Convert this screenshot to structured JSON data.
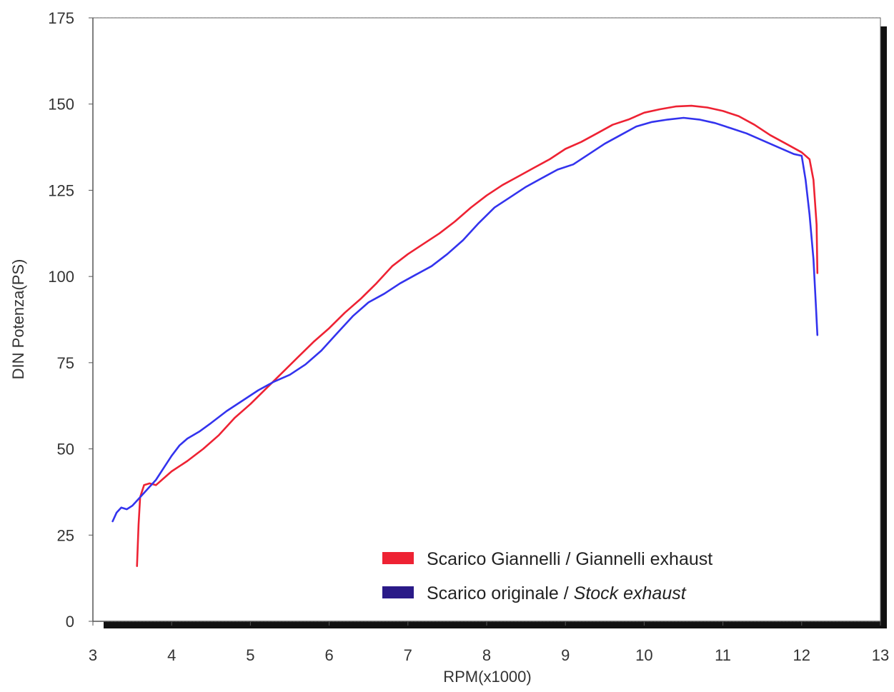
{
  "chart_data": {
    "type": "line",
    "title": "",
    "xlabel": "RPM(x1000)",
    "ylabel": "DIN Potenza(PS)",
    "xlim": [
      3,
      13
    ],
    "ylim": [
      0,
      175
    ],
    "x_ticks": [
      3,
      4,
      5,
      6,
      7,
      8,
      9,
      10,
      11,
      12,
      13
    ],
    "y_ticks": [
      0,
      25,
      50,
      75,
      100,
      125,
      150,
      175
    ],
    "grid": true,
    "legend_position": "bottom-right",
    "series": [
      {
        "name": "Scarico Giannelli / Giannelli exhaust",
        "name_parts": [
          "Scarico Giannelli / Giannelli exhaust",
          ""
        ],
        "color": "#ee2233",
        "points": [
          [
            3.56,
            16
          ],
          [
            3.58,
            28
          ],
          [
            3.6,
            36
          ],
          [
            3.65,
            39.5
          ],
          [
            3.72,
            40
          ],
          [
            3.8,
            39.5
          ],
          [
            3.9,
            41.5
          ],
          [
            4.0,
            43.5
          ],
          [
            4.2,
            46.5
          ],
          [
            4.4,
            50
          ],
          [
            4.6,
            54
          ],
          [
            4.8,
            59
          ],
          [
            5.0,
            63
          ],
          [
            5.2,
            67.5
          ],
          [
            5.4,
            72
          ],
          [
            5.6,
            76.5
          ],
          [
            5.8,
            81
          ],
          [
            6.0,
            85
          ],
          [
            6.2,
            89.5
          ],
          [
            6.4,
            93.5
          ],
          [
            6.6,
            98
          ],
          [
            6.8,
            103
          ],
          [
            7.0,
            106.5
          ],
          [
            7.2,
            109.5
          ],
          [
            7.4,
            112.5
          ],
          [
            7.6,
            116
          ],
          [
            7.8,
            120
          ],
          [
            8.0,
            123.5
          ],
          [
            8.2,
            126.5
          ],
          [
            8.4,
            129
          ],
          [
            8.6,
            131.5
          ],
          [
            8.8,
            134
          ],
          [
            9.0,
            137
          ],
          [
            9.2,
            139
          ],
          [
            9.4,
            141.5
          ],
          [
            9.6,
            144
          ],
          [
            9.8,
            145.5
          ],
          [
            10.0,
            147.5
          ],
          [
            10.2,
            148.5
          ],
          [
            10.4,
            149.3
          ],
          [
            10.6,
            149.5
          ],
          [
            10.8,
            149
          ],
          [
            11.0,
            148
          ],
          [
            11.2,
            146.5
          ],
          [
            11.4,
            144
          ],
          [
            11.6,
            141
          ],
          [
            11.8,
            138.5
          ],
          [
            12.0,
            136
          ],
          [
            12.1,
            134
          ],
          [
            12.15,
            128
          ],
          [
            12.19,
            115
          ],
          [
            12.2,
            101
          ]
        ]
      },
      {
        "name": "Scarico originale / Stock exhaust",
        "name_parts": [
          "Scarico originale / ",
          "Stock exhaust"
        ],
        "color": "#3333ee",
        "points": [
          [
            3.25,
            29
          ],
          [
            3.3,
            31.5
          ],
          [
            3.36,
            33
          ],
          [
            3.43,
            32.5
          ],
          [
            3.5,
            33.5
          ],
          [
            3.6,
            36
          ],
          [
            3.7,
            38.5
          ],
          [
            3.8,
            41
          ],
          [
            3.9,
            44.5
          ],
          [
            4.0,
            48
          ],
          [
            4.1,
            51
          ],
          [
            4.2,
            53
          ],
          [
            4.35,
            55
          ],
          [
            4.5,
            57.5
          ],
          [
            4.7,
            61
          ],
          [
            4.9,
            64
          ],
          [
            5.1,
            67
          ],
          [
            5.3,
            69.5
          ],
          [
            5.5,
            71.5
          ],
          [
            5.7,
            74.5
          ],
          [
            5.9,
            78.5
          ],
          [
            6.1,
            83.5
          ],
          [
            6.3,
            88.5
          ],
          [
            6.5,
            92.5
          ],
          [
            6.7,
            95
          ],
          [
            6.9,
            98
          ],
          [
            7.1,
            100.5
          ],
          [
            7.3,
            103
          ],
          [
            7.5,
            106.5
          ],
          [
            7.7,
            110.5
          ],
          [
            7.9,
            115.5
          ],
          [
            8.1,
            120
          ],
          [
            8.3,
            123
          ],
          [
            8.5,
            126
          ],
          [
            8.7,
            128.5
          ],
          [
            8.9,
            131
          ],
          [
            9.1,
            132.5
          ],
          [
            9.3,
            135.5
          ],
          [
            9.5,
            138.5
          ],
          [
            9.7,
            141
          ],
          [
            9.9,
            143.5
          ],
          [
            10.1,
            144.8
          ],
          [
            10.3,
            145.5
          ],
          [
            10.5,
            146
          ],
          [
            10.7,
            145.5
          ],
          [
            10.9,
            144.5
          ],
          [
            11.1,
            143
          ],
          [
            11.3,
            141.5
          ],
          [
            11.5,
            139.5
          ],
          [
            11.7,
            137.5
          ],
          [
            11.9,
            135.5
          ],
          [
            12.0,
            135
          ],
          [
            12.05,
            128
          ],
          [
            12.1,
            118
          ],
          [
            12.15,
            105
          ],
          [
            12.18,
            92
          ],
          [
            12.2,
            83
          ]
        ]
      }
    ]
  }
}
